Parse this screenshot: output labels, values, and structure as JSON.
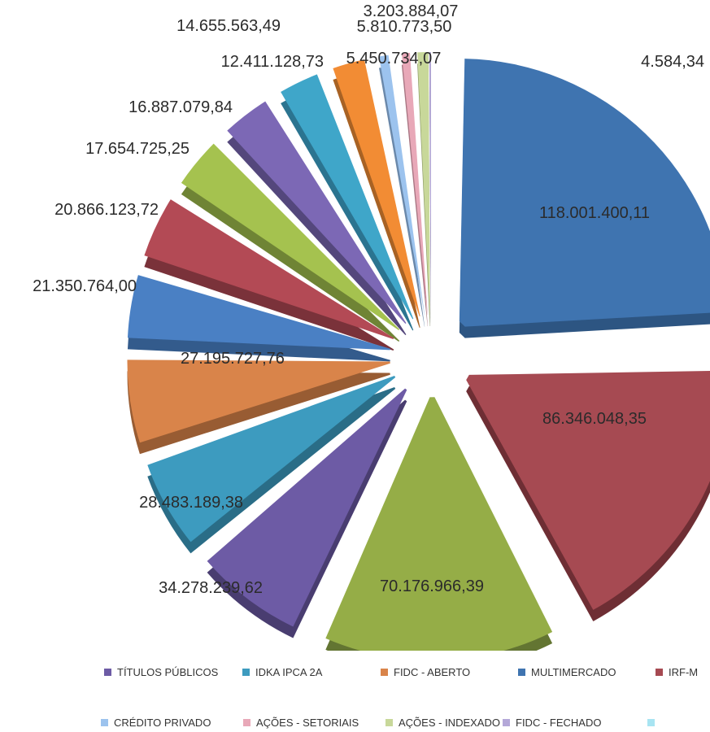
{
  "chart_data": {
    "type": "pie",
    "title": "",
    "slices": [
      {
        "label": "MULTIMERCADO",
        "value": 118001400.11,
        "display": "118.001.400,11",
        "color": "#3f74b0",
        "side": "#2d5582"
      },
      {
        "label": "IRF-M",
        "value": 86346048.35,
        "display": "86.346.048,35",
        "color": "#a64a52",
        "side": "#6e2e34"
      },
      {
        "label": "",
        "value": 70176966.39,
        "display": "70.176.966,39",
        "color": "#95ad47",
        "side": "#637532"
      },
      {
        "label": "TÍTULOS PÚBLICOS",
        "value": 34278239.62,
        "display": "34.278.239,62",
        "color": "#6d5ba5",
        "side": "#493d70"
      },
      {
        "label": "IDKA IPCA 2A",
        "value": 28483189.38,
        "display": "28.483.189,38",
        "color": "#3d9bbf",
        "side": "#2a6d87"
      },
      {
        "label": "FIDC - ABERTO",
        "value": 27195727.76,
        "display": "27.195.727,76",
        "color": "#d9844a",
        "side": "#985c33"
      },
      {
        "label": "",
        "value": 21350764.0,
        "display": "21.350.764,00",
        "color": "#4a80c4",
        "side": "#335b8c"
      },
      {
        "label": "",
        "value": 20866123.72,
        "display": "20.866.123,72",
        "color": "#b34a55",
        "side": "#7a323a"
      },
      {
        "label": "",
        "value": 17654725.25,
        "display": "17.654.725,25",
        "color": "#a5c24f",
        "side": "#6f8435"
      },
      {
        "label": "",
        "value": 16887079.84,
        "display": "16.887.079,84",
        "color": "#7c68b5",
        "side": "#54477c"
      },
      {
        "label": "",
        "value": 14655563.49,
        "display": "14.655.563,49",
        "color": "#3fa6c9",
        "side": "#2b7490"
      },
      {
        "label": "",
        "value": 12411128.73,
        "display": "12.411.128,73",
        "color": "#f28c34",
        "side": "#a86224"
      },
      {
        "label": "CRÉDITO PRIVADO",
        "value": 5810773.5,
        "display": "5.810.773,50",
        "color": "#9cc3ee",
        "side": "#6a88aa"
      },
      {
        "label": "AÇÕES - SETORIAIS",
        "value": 5450734.07,
        "display": "5.450.734,07",
        "color": "#e8a8b8",
        "side": "#a87683"
      },
      {
        "label": "AÇÕES - INDEXADO",
        "value": 3203884.07,
        "display": "3.203.884,07",
        "color": "#c8d89a",
        "side": "#8c9a66"
      },
      {
        "label": "FIDC - FECHADO",
        "value": 4584.34,
        "display": "4.584,34",
        "color": "#b4a8d8",
        "side": "#7d739a"
      }
    ],
    "legend_rows": [
      [
        {
          "label": "TÍTULOS PÚBLICOS",
          "color": "#6d5ba5"
        },
        {
          "label": "IDKA IPCA 2A",
          "color": "#3d9bbf"
        },
        {
          "label": "FIDC - ABERTO",
          "color": "#d9844a"
        },
        {
          "label": "MULTIMERCADO",
          "color": "#3f74b0"
        },
        {
          "label": "IRF-M",
          "color": "#a64a52"
        }
      ],
      [
        {
          "label": "CRÉDITO PRIVADO",
          "color": "#9cc3ee"
        },
        {
          "label": "AÇÕES - SETORIAIS",
          "color": "#e8a8b8"
        },
        {
          "label": "AÇÕES - INDEXADO",
          "color": "#c8d89a"
        },
        {
          "label": "FIDC - FECHADO",
          "color": "#b4a8d8"
        },
        {
          "label": "",
          "color": "#a8e4f2"
        }
      ]
    ],
    "legend_placement": "bottom"
  }
}
